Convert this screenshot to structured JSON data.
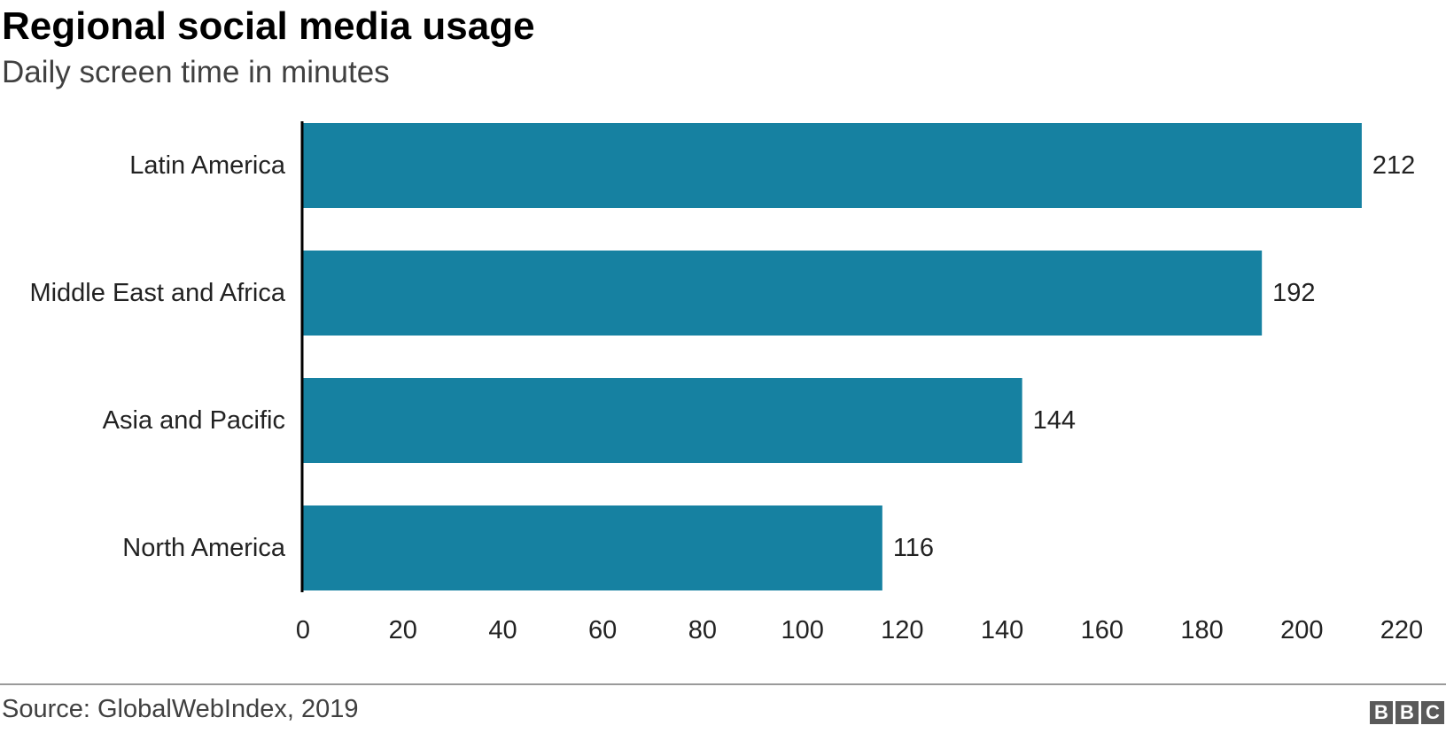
{
  "header": {
    "title": "Regional social media usage",
    "subtitle": "Daily screen time in minutes"
  },
  "footer": {
    "source": "Source: GlobalWebIndex, 2019",
    "logo_letters": [
      "B",
      "B",
      "C"
    ]
  },
  "colors": {
    "bar": "#1681a1",
    "axis": "#000000",
    "text": "#222222"
  },
  "chart_data": {
    "type": "bar",
    "orientation": "horizontal",
    "title": "Regional social media usage",
    "subtitle": "Daily screen time in minutes",
    "categories": [
      "Latin America",
      "Middle East and Africa",
      "Asia and Pacific",
      "North America"
    ],
    "values": [
      212,
      192,
      144,
      116
    ],
    "value_labels": [
      "212",
      "192",
      "144",
      "116"
    ],
    "xlim": [
      0,
      220
    ],
    "xticks": [
      0,
      20,
      40,
      60,
      80,
      100,
      120,
      140,
      160,
      180,
      200,
      220
    ],
    "xtick_labels": [
      "0",
      "20",
      "40",
      "60",
      "80",
      "100",
      "120",
      "140",
      "160",
      "180",
      "200",
      "220"
    ],
    "xlabel": "",
    "ylabel": "",
    "grid": false,
    "legend": "none"
  }
}
